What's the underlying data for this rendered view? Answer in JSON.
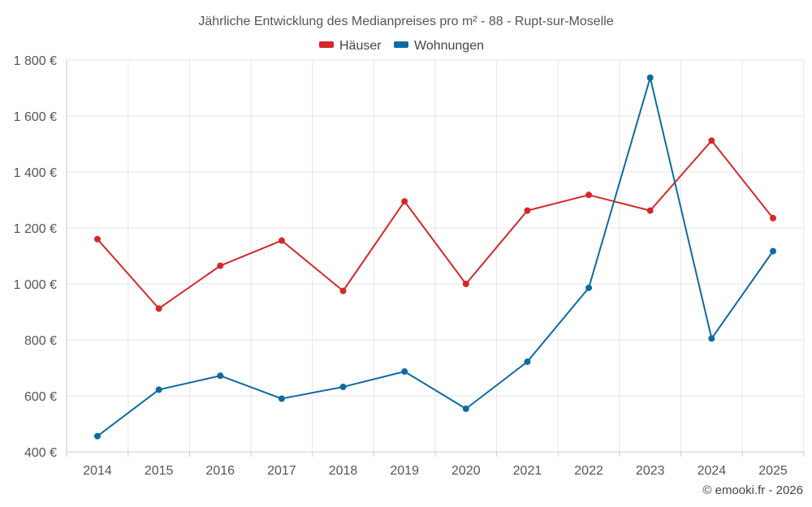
{
  "chart_data": {
    "type": "line",
    "title": "Jährliche Entwicklung des Medianpreises pro m² - 88 - Rupt-sur-Moselle",
    "categories": [
      "2014",
      "2015",
      "2016",
      "2017",
      "2018",
      "2019",
      "2020",
      "2021",
      "2022",
      "2023",
      "2024",
      "2025"
    ],
    "series": [
      {
        "name": "Häuser",
        "color": "#d62728",
        "values": [
          1160,
          912,
          1065,
          1155,
          975,
          1295,
          1000,
          1262,
          1318,
          1262,
          1512,
          1235
        ]
      },
      {
        "name": "Wohnungen",
        "color": "#0e6aa3",
        "values": [
          456,
          622,
          672,
          590,
          632,
          687,
          554,
          722,
          986,
          1737,
          805,
          1117
        ]
      }
    ],
    "yticks": [
      400,
      600,
      800,
      1000,
      1200,
      1400,
      1600,
      1800
    ],
    "ytick_labels": [
      "400 €",
      "600 €",
      "800 €",
      "1 000 €",
      "1 200 €",
      "1 400 €",
      "1 600 €",
      "1 800 €"
    ],
    "ylim": [
      400,
      1800
    ],
    "xlabel": "",
    "ylabel": "",
    "grid": true,
    "legend_position": "top-center"
  },
  "credit": "© emooki.fr - 2026"
}
